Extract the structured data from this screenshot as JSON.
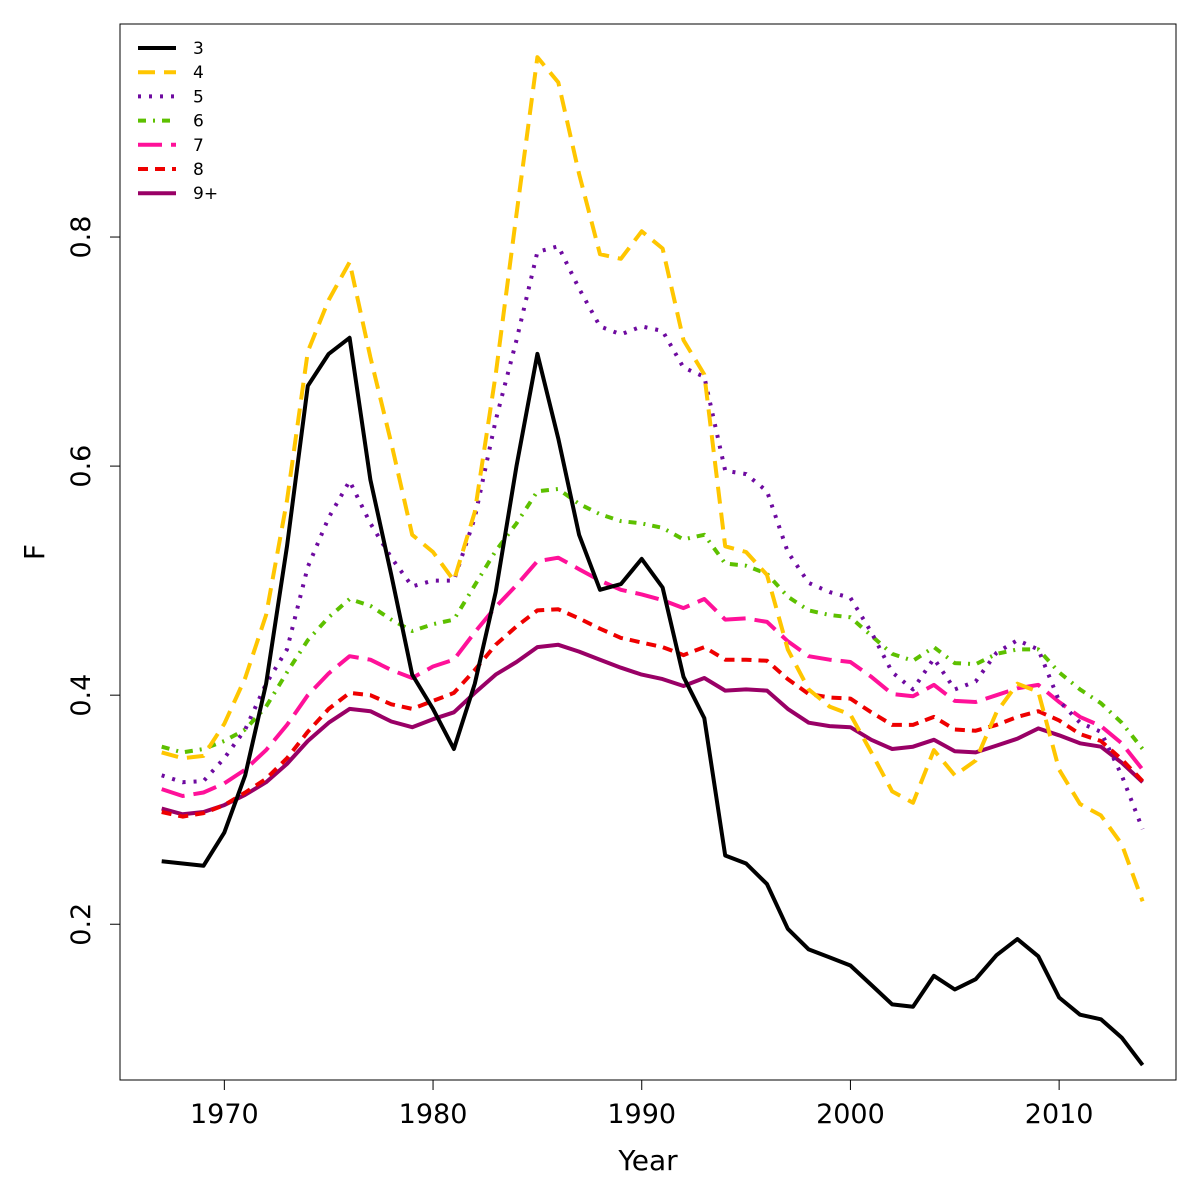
{
  "chart_data": {
    "type": "line",
    "title": "",
    "xlabel": "Year",
    "ylabel": "F",
    "xlim": [
      1965,
      2015.6
    ],
    "ylim": [
      0.064,
      0.986
    ],
    "xticks": [
      1970,
      1980,
      1990,
      2000,
      2010
    ],
    "yticks": [
      0.2,
      0.4,
      0.6,
      0.8
    ],
    "xtick_labels": [
      "1970",
      "1980",
      "1990",
      "2000",
      "2010"
    ],
    "ytick_labels": [
      "0.2",
      "0.4",
      "0.6",
      "0.8"
    ],
    "grid": false,
    "legend_position": "top-left",
    "x": [
      1967,
      1968,
      1969,
      1970,
      1971,
      1972,
      1973,
      1974,
      1975,
      1976,
      1977,
      1978,
      1979,
      1980,
      1981,
      1982,
      1983,
      1984,
      1985,
      1986,
      1987,
      1988,
      1989,
      1990,
      1991,
      1992,
      1993,
      1994,
      1995,
      1996,
      1997,
      1998,
      1999,
      2000,
      2001,
      2002,
      2003,
      2004,
      2005,
      2006,
      2007,
      2008,
      2009,
      2010,
      2011,
      2012,
      2013,
      2014
    ],
    "series": [
      {
        "name": "3",
        "color": "#000000",
        "dash": "solid",
        "values": [
          0.255,
          0.253,
          0.251,
          0.28,
          0.33,
          0.41,
          0.53,
          0.67,
          0.698,
          0.712,
          0.588,
          0.505,
          0.418,
          0.388,
          0.353,
          0.41,
          0.49,
          0.6,
          0.698,
          0.624,
          0.54,
          0.492,
          0.497,
          0.519,
          0.494,
          0.416,
          0.38,
          0.26,
          0.253,
          0.235,
          0.196,
          0.178,
          0.171,
          0.164,
          0.147,
          0.13,
          0.128,
          0.155,
          0.143,
          0.152,
          0.173,
          0.187,
          0.172,
          0.136,
          0.121,
          0.117,
          0.101,
          0.077
        ]
      },
      {
        "name": "4",
        "color": "#FFC600",
        "dash": "long",
        "values": [
          0.35,
          0.345,
          0.347,
          0.375,
          0.415,
          0.47,
          0.57,
          0.7,
          0.745,
          0.778,
          0.695,
          0.62,
          0.54,
          0.525,
          0.5,
          0.56,
          0.68,
          0.82,
          0.957,
          0.935,
          0.855,
          0.785,
          0.781,
          0.805,
          0.79,
          0.71,
          0.68,
          0.53,
          0.525,
          0.505,
          0.44,
          0.405,
          0.39,
          0.383,
          0.35,
          0.316,
          0.306,
          0.352,
          0.33,
          0.343,
          0.385,
          0.41,
          0.403,
          0.335,
          0.305,
          0.295,
          0.27,
          0.22
        ]
      },
      {
        "name": "5",
        "color": "#6E0AA0",
        "dash": "dot",
        "values": [
          0.33,
          0.324,
          0.325,
          0.345,
          0.37,
          0.41,
          0.44,
          0.512,
          0.555,
          0.587,
          0.55,
          0.52,
          0.495,
          0.5,
          0.5,
          0.555,
          0.64,
          0.71,
          0.787,
          0.792,
          0.755,
          0.722,
          0.715,
          0.722,
          0.718,
          0.686,
          0.678,
          0.596,
          0.593,
          0.578,
          0.525,
          0.498,
          0.49,
          0.485,
          0.455,
          0.42,
          0.405,
          0.432,
          0.405,
          0.412,
          0.437,
          0.448,
          0.44,
          0.395,
          0.376,
          0.368,
          0.33,
          0.283
        ]
      },
      {
        "name": "6",
        "color": "#5DC000",
        "dash": "dashdot",
        "values": [
          0.355,
          0.35,
          0.353,
          0.36,
          0.37,
          0.39,
          0.42,
          0.448,
          0.468,
          0.484,
          0.478,
          0.466,
          0.456,
          0.462,
          0.466,
          0.496,
          0.526,
          0.55,
          0.578,
          0.58,
          0.567,
          0.558,
          0.552,
          0.55,
          0.546,
          0.536,
          0.54,
          0.515,
          0.513,
          0.506,
          0.486,
          0.474,
          0.47,
          0.468,
          0.452,
          0.436,
          0.43,
          0.442,
          0.428,
          0.427,
          0.436,
          0.44,
          0.44,
          0.42,
          0.405,
          0.393,
          0.376,
          0.353
        ]
      },
      {
        "name": "7",
        "color": "#FF1199",
        "dash": "longdash",
        "values": [
          0.318,
          0.312,
          0.315,
          0.323,
          0.335,
          0.352,
          0.374,
          0.4,
          0.419,
          0.434,
          0.431,
          0.422,
          0.415,
          0.425,
          0.431,
          0.455,
          0.477,
          0.496,
          0.517,
          0.52,
          0.51,
          0.5,
          0.492,
          0.488,
          0.483,
          0.476,
          0.484,
          0.466,
          0.467,
          0.464,
          0.447,
          0.434,
          0.431,
          0.429,
          0.416,
          0.401,
          0.399,
          0.409,
          0.395,
          0.394,
          0.4,
          0.406,
          0.409,
          0.394,
          0.381,
          0.373,
          0.358,
          0.335
        ]
      },
      {
        "name": "8",
        "color": "#EE0000",
        "dash": "dash",
        "values": [
          0.298,
          0.294,
          0.297,
          0.304,
          0.315,
          0.327,
          0.345,
          0.368,
          0.388,
          0.402,
          0.4,
          0.392,
          0.388,
          0.395,
          0.402,
          0.422,
          0.444,
          0.46,
          0.474,
          0.475,
          0.467,
          0.458,
          0.45,
          0.446,
          0.442,
          0.435,
          0.442,
          0.431,
          0.431,
          0.43,
          0.414,
          0.401,
          0.398,
          0.397,
          0.385,
          0.374,
          0.374,
          0.381,
          0.37,
          0.369,
          0.374,
          0.381,
          0.386,
          0.378,
          0.366,
          0.36,
          0.344,
          0.325
        ]
      },
      {
        "name": "9+",
        "color": "#990066",
        "dash": "solid",
        "values": [
          0.301,
          0.296,
          0.298,
          0.304,
          0.313,
          0.324,
          0.34,
          0.36,
          0.376,
          0.388,
          0.386,
          0.377,
          0.372,
          0.379,
          0.385,
          0.402,
          0.418,
          0.429,
          0.442,
          0.444,
          0.438,
          0.431,
          0.424,
          0.418,
          0.414,
          0.408,
          0.415,
          0.404,
          0.405,
          0.404,
          0.388,
          0.376,
          0.373,
          0.372,
          0.361,
          0.353,
          0.355,
          0.361,
          0.351,
          0.35,
          0.356,
          0.362,
          0.371,
          0.365,
          0.358,
          0.355,
          0.341,
          0.324
        ]
      }
    ]
  }
}
